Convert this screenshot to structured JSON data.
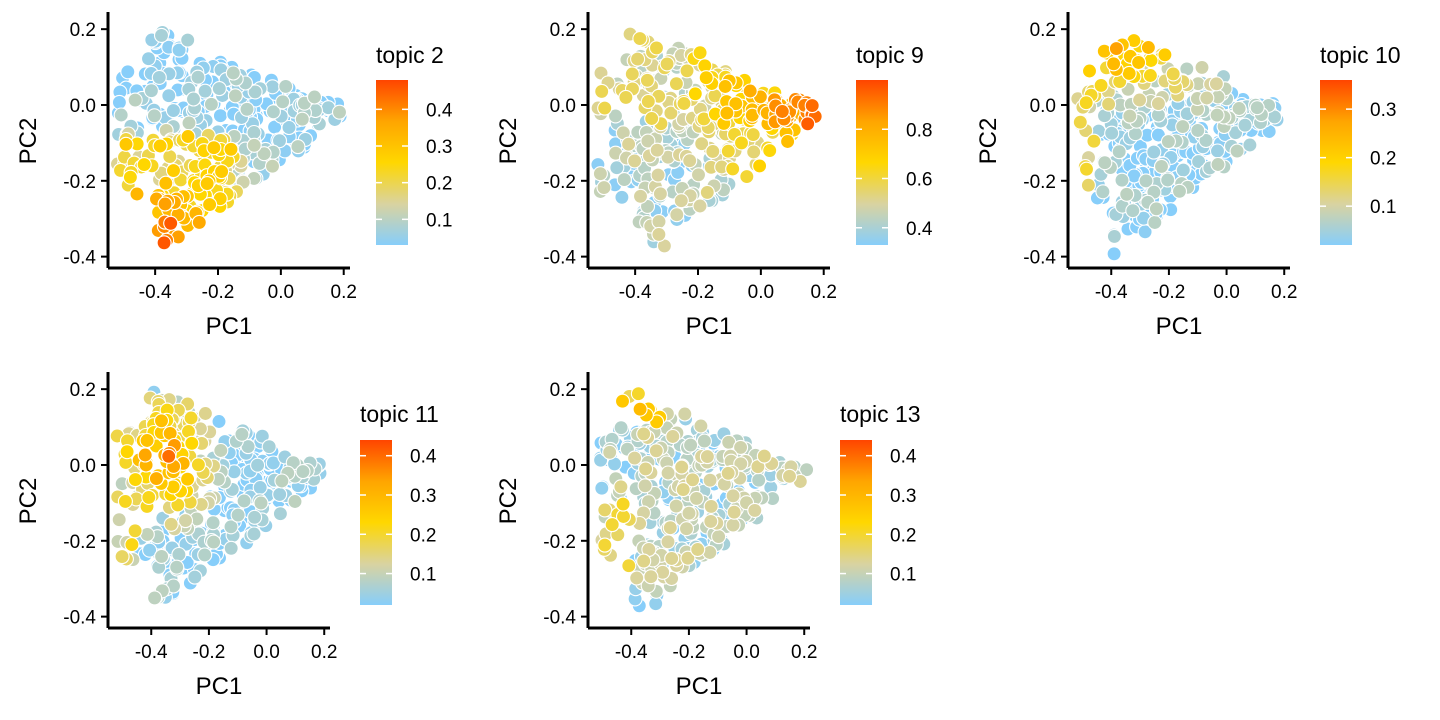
{
  "figure": {
    "background": "#ffffff"
  },
  "colorscale": [
    "#87CEFA",
    "#D9D3A0",
    "#FFD700",
    "#FFA500",
    "#FF4500"
  ],
  "point_stroke": "#ffffff",
  "axes_common": {
    "xlabel": "PC1",
    "ylabel": "PC2",
    "xlim": [
      -0.55,
      0.22
    ],
    "ylim": [
      -0.43,
      0.24
    ],
    "xticks": [
      -0.4,
      -0.2,
      0.0,
      0.2
    ],
    "xtick_labels": [
      "-0.4",
      "-0.2",
      "0.0",
      "0.2"
    ],
    "yticks": [
      0.2,
      0.0,
      -0.2,
      -0.4
    ],
    "ytick_labels": [
      "0.2",
      "0.0",
      "-0.2",
      "-0.4"
    ],
    "grid": false
  },
  "chart_data": [
    {
      "type": "scatter",
      "legend_title": "topic 2",
      "legend_placement": "right",
      "xlabel": "PC1",
      "ylabel": "PC2",
      "color_range": [
        0.03,
        0.48
      ],
      "legend_ticks": [
        0.1,
        0.2,
        0.3,
        0.4
      ],
      "legend_tick_labels": [
        "0.1",
        "0.2",
        "0.3",
        "0.4"
      ],
      "profile": {
        "kind": "lowleft",
        "lo": 0.03,
        "hi": 0.46,
        "seed": 11
      }
    },
    {
      "type": "scatter",
      "legend_title": "topic 9",
      "legend_placement": "right",
      "xlabel": "PC1",
      "ylabel": "PC2",
      "color_range": [
        0.33,
        1.0
      ],
      "legend_ticks": [
        0.4,
        0.6,
        0.8
      ],
      "legend_tick_labels": [
        "0.4",
        "0.6",
        "0.8"
      ],
      "profile": {
        "kind": "right",
        "lo": 0.34,
        "hi": 0.99,
        "seed": 23
      }
    },
    {
      "type": "scatter",
      "legend_title": "topic 10",
      "legend_placement": "right",
      "xlabel": "PC1",
      "ylabel": "PC2",
      "color_range": [
        0.02,
        0.36
      ],
      "legend_ticks": [
        0.1,
        0.2,
        0.3
      ],
      "legend_tick_labels": [
        "0.1",
        "0.2",
        "0.3"
      ],
      "profile": {
        "kind": "upleft",
        "lo": 0.02,
        "hi": 0.35,
        "seed": 37
      }
    },
    {
      "type": "scatter",
      "legend_title": "topic 11",
      "legend_placement": "right",
      "xlabel": "PC1",
      "ylabel": "PC2",
      "color_range": [
        0.02,
        0.44
      ],
      "legend_ticks": [
        0.1,
        0.2,
        0.3,
        0.4
      ],
      "legend_tick_labels": [
        "0.1",
        "0.2",
        "0.3",
        "0.4"
      ],
      "profile": {
        "kind": "midleft",
        "lo": 0.02,
        "hi": 0.42,
        "seed": 41
      }
    },
    {
      "type": "scatter",
      "legend_title": "topic 13",
      "legend_placement": "right",
      "xlabel": "PC1",
      "ylabel": "PC2",
      "color_range": [
        0.02,
        0.44
      ],
      "legend_ticks": [
        0.1,
        0.2,
        0.3,
        0.4
      ],
      "legend_tick_labels": [
        "0.1",
        "0.2",
        "0.3",
        "0.4"
      ],
      "profile": {
        "kind": "scattered",
        "lo": 0.02,
        "hi": 0.42,
        "seed": 53
      }
    }
  ]
}
